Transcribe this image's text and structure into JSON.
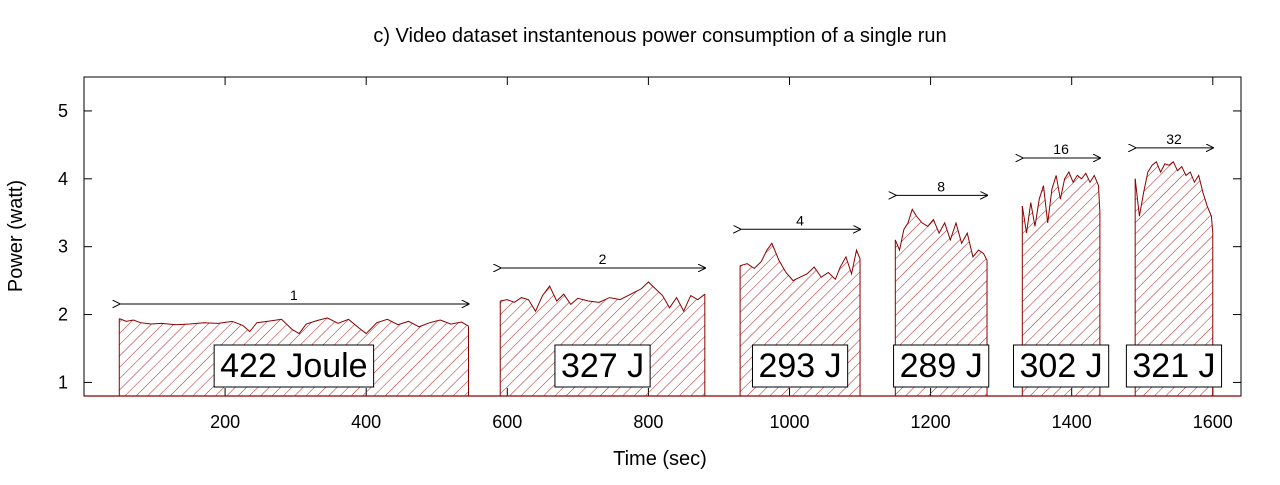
{
  "chart_data": {
    "type": "area",
    "title": "c) Video dataset instantenous power consumption of a single run",
    "xlabel": "Time (sec)",
    "ylabel": "Power (watt)",
    "xlim": [
      0,
      1640
    ],
    "ylim": [
      0.8,
      5.5
    ],
    "xticks": [
      200,
      400,
      600,
      800,
      1000,
      1200,
      1400,
      1600
    ],
    "yticks": [
      1,
      2,
      3,
      4,
      5
    ],
    "grid": false,
    "baseline": 0.8,
    "colors": {
      "fill": "#b22222",
      "line": "#8b0000",
      "axis": "#000000"
    },
    "series": [
      {
        "label": "1",
        "energy": "422 Joule",
        "range": [
          50,
          545
        ],
        "points": [
          [
            50,
            1.94
          ],
          [
            60,
            1.9
          ],
          [
            70,
            1.92
          ],
          [
            80,
            1.88
          ],
          [
            95,
            1.86
          ],
          [
            110,
            1.87
          ],
          [
            130,
            1.85
          ],
          [
            150,
            1.86
          ],
          [
            170,
            1.88
          ],
          [
            190,
            1.87
          ],
          [
            210,
            1.9
          ],
          [
            225,
            1.84
          ],
          [
            235,
            1.75
          ],
          [
            245,
            1.88
          ],
          [
            260,
            1.9
          ],
          [
            280,
            1.93
          ],
          [
            295,
            1.78
          ],
          [
            305,
            1.72
          ],
          [
            315,
            1.86
          ],
          [
            330,
            1.91
          ],
          [
            345,
            1.95
          ],
          [
            360,
            1.87
          ],
          [
            375,
            1.93
          ],
          [
            390,
            1.8
          ],
          [
            400,
            1.72
          ],
          [
            415,
            1.88
          ],
          [
            430,
            1.93
          ],
          [
            445,
            1.85
          ],
          [
            460,
            1.9
          ],
          [
            475,
            1.82
          ],
          [
            490,
            1.88
          ],
          [
            505,
            1.92
          ],
          [
            520,
            1.86
          ],
          [
            535,
            1.89
          ],
          [
            545,
            1.83
          ]
        ]
      },
      {
        "label": "2",
        "energy": "327 J",
        "range": [
          590,
          880
        ],
        "points": [
          [
            590,
            2.2
          ],
          [
            600,
            2.22
          ],
          [
            610,
            2.18
          ],
          [
            620,
            2.25
          ],
          [
            630,
            2.22
          ],
          [
            640,
            2.05
          ],
          [
            650,
            2.28
          ],
          [
            660,
            2.42
          ],
          [
            670,
            2.2
          ],
          [
            680,
            2.3
          ],
          [
            690,
            2.15
          ],
          [
            700,
            2.24
          ],
          [
            715,
            2.2
          ],
          [
            730,
            2.18
          ],
          [
            745,
            2.25
          ],
          [
            760,
            2.22
          ],
          [
            775,
            2.3
          ],
          [
            790,
            2.38
          ],
          [
            800,
            2.48
          ],
          [
            810,
            2.38
          ],
          [
            820,
            2.28
          ],
          [
            830,
            2.1
          ],
          [
            840,
            2.25
          ],
          [
            850,
            2.05
          ],
          [
            860,
            2.28
          ],
          [
            870,
            2.22
          ],
          [
            880,
            2.3
          ]
        ]
      },
      {
        "label": "4",
        "energy": "293 J",
        "range": [
          930,
          1100
        ],
        "points": [
          [
            930,
            2.72
          ],
          [
            940,
            2.75
          ],
          [
            950,
            2.68
          ],
          [
            960,
            2.78
          ],
          [
            968,
            2.95
          ],
          [
            975,
            3.05
          ],
          [
            985,
            2.8
          ],
          [
            995,
            2.62
          ],
          [
            1005,
            2.5
          ],
          [
            1015,
            2.55
          ],
          [
            1025,
            2.6
          ],
          [
            1035,
            2.7
          ],
          [
            1045,
            2.55
          ],
          [
            1055,
            2.62
          ],
          [
            1065,
            2.52
          ],
          [
            1072,
            2.7
          ],
          [
            1080,
            2.85
          ],
          [
            1088,
            2.6
          ],
          [
            1095,
            2.95
          ],
          [
            1100,
            2.82
          ]
        ]
      },
      {
        "label": "8",
        "energy": "289 J",
        "range": [
          1150,
          1280
        ],
        "points": [
          [
            1150,
            3.1
          ],
          [
            1156,
            2.95
          ],
          [
            1162,
            3.25
          ],
          [
            1168,
            3.35
          ],
          [
            1174,
            3.55
          ],
          [
            1180,
            3.45
          ],
          [
            1188,
            3.35
          ],
          [
            1196,
            3.3
          ],
          [
            1204,
            3.4
          ],
          [
            1212,
            3.2
          ],
          [
            1220,
            3.35
          ],
          [
            1228,
            3.1
          ],
          [
            1236,
            3.35
          ],
          [
            1244,
            3.05
          ],
          [
            1252,
            3.2
          ],
          [
            1260,
            2.85
          ],
          [
            1268,
            2.95
          ],
          [
            1275,
            2.9
          ],
          [
            1280,
            2.8
          ]
        ]
      },
      {
        "label": "16",
        "energy": "302 J",
        "range": [
          1330,
          1440
        ],
        "points": [
          [
            1330,
            3.6
          ],
          [
            1336,
            3.2
          ],
          [
            1342,
            3.65
          ],
          [
            1348,
            3.3
          ],
          [
            1354,
            3.7
          ],
          [
            1360,
            3.9
          ],
          [
            1366,
            3.35
          ],
          [
            1372,
            3.85
          ],
          [
            1378,
            4.05
          ],
          [
            1384,
            3.7
          ],
          [
            1390,
            4.0
          ],
          [
            1396,
            4.1
          ],
          [
            1402,
            3.95
          ],
          [
            1408,
            4.05
          ],
          [
            1414,
            4.0
          ],
          [
            1420,
            4.08
          ],
          [
            1426,
            3.95
          ],
          [
            1432,
            4.05
          ],
          [
            1438,
            3.9
          ],
          [
            1440,
            3.5
          ]
        ]
      },
      {
        "label": "32",
        "energy": "321 J",
        "range": [
          1490,
          1600
        ],
        "points": [
          [
            1490,
            4.0
          ],
          [
            1496,
            3.45
          ],
          [
            1502,
            3.8
          ],
          [
            1508,
            4.1
          ],
          [
            1514,
            4.2
          ],
          [
            1520,
            4.25
          ],
          [
            1526,
            4.1
          ],
          [
            1532,
            4.22
          ],
          [
            1538,
            4.2
          ],
          [
            1544,
            4.25
          ],
          [
            1550,
            4.12
          ],
          [
            1556,
            4.18
          ],
          [
            1562,
            4.05
          ],
          [
            1568,
            4.1
          ],
          [
            1574,
            3.95
          ],
          [
            1580,
            4.05
          ],
          [
            1586,
            3.8
          ],
          [
            1592,
            3.6
          ],
          [
            1598,
            3.45
          ],
          [
            1600,
            3.2
          ]
        ]
      }
    ]
  }
}
